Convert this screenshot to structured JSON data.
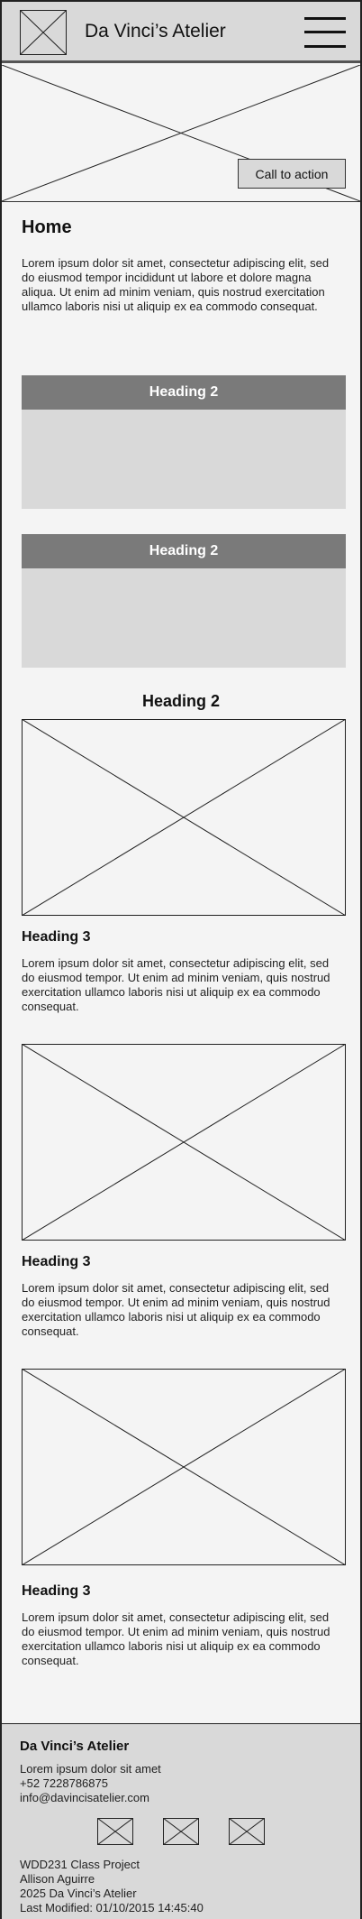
{
  "header": {
    "logo_icon": "image-placeholder-icon",
    "site_title": "Da Vinci’s Atelier",
    "menu_icon": "hamburger-menu-icon"
  },
  "hero": {
    "image_icon": "image-placeholder-icon",
    "cta_label": "Call to action"
  },
  "main": {
    "page_title": "Home",
    "intro": "Lorem ipsum dolor sit amet, consectetur adipiscing elit, sed do eiusmod tempor incididunt ut labore et dolore magna aliqua. Ut enim ad minim veniam, quis nostrud exercitation ullamco laboris nisi ut aliquip ex ea commodo consequat.",
    "cards": [
      {
        "heading": "Heading 2"
      },
      {
        "heading": "Heading 2"
      }
    ],
    "section_heading": "Heading 2",
    "items": [
      {
        "heading": "Heading 3",
        "text": "Lorem ipsum dolor sit amet, consectetur adipiscing elit, sed do eiusmod tempor. Ut enim ad minim veniam, quis nostrud exercitation ullamco laboris nisi ut aliquip ex ea commodo consequat."
      },
      {
        "heading": "Heading 3",
        "text": "Lorem ipsum dolor sit amet, consectetur adipiscing elit, sed do eiusmod tempor. Ut enim ad minim veniam, quis nostrud exercitation ullamco laboris nisi ut aliquip ex ea commodo consequat."
      },
      {
        "heading": "Heading 3",
        "text": "Lorem ipsum dolor sit amet, consectetur adipiscing elit, sed do eiusmod tempor. Ut enim ad minim veniam, quis nostrud exercitation ullamco laboris nisi ut aliquip ex ea commodo consequat."
      }
    ]
  },
  "footer": {
    "title": "Da Vinci’s Atelier",
    "tagline": "Lorem ipsum dolor sit amet",
    "phone": "+52 7228786875",
    "email": "info@davincisatelier.com",
    "social_icons": [
      "social-placeholder-icon",
      "social-placeholder-icon",
      "social-placeholder-icon"
    ],
    "project": "WDD231 Class Project",
    "author": "Allison Aguirre",
    "copyright": "2025 Da Vinci’s Atelier",
    "last_modified": "Last Modified: 01/10/2015 14:45:40"
  },
  "colors": {
    "page_background": "#f4f4f4",
    "header_footer_background": "#d9d9d9",
    "card_heading_background": "#7a7a7a",
    "card_body_background": "#d9d9d9"
  }
}
